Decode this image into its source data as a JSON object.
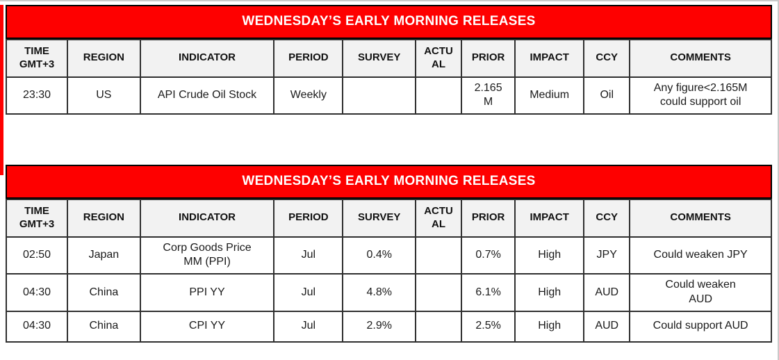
{
  "colors": {
    "band_red": "#fe0000",
    "band_text": "#ffffff",
    "header_bg": "#f2f2f2",
    "border": "#000000"
  },
  "tables": [
    {
      "title": "WEDNESDAY’S EARLY MORNING RELEASES",
      "headers": [
        "TIME\nGMT+3",
        "REGION",
        "INDICATOR",
        "PERIOD",
        "SURVEY",
        "ACTU\nAL",
        "PRIOR",
        "IMPACT",
        "CCY",
        "COMMENTS"
      ],
      "rows": [
        [
          "23:30",
          "US",
          "API Crude Oil Stock",
          "Weekly",
          "",
          "",
          "2.165\nM",
          "Medium",
          "Oil",
          "Any figure<2.165M\ncould support oil"
        ]
      ]
    },
    {
      "title": "WEDNESDAY’S EARLY MORNING RELEASES",
      "headers": [
        "TIME\nGMT+3",
        "REGION",
        "INDICATOR",
        "PERIOD",
        "SURVEY",
        "ACTU\nAL",
        "PRIOR",
        "IMPACT",
        "CCY",
        "COMMENTS"
      ],
      "rows": [
        [
          "02:50",
          "Japan",
          "Corp Goods Price\nMM (PPI)",
          "Jul",
          "0.4%",
          "",
          "0.7%",
          "High",
          "JPY",
          "Could weaken JPY"
        ],
        [
          "04:30",
          "China",
          "PPI YY",
          "Jul",
          "4.8%",
          "",
          "6.1%",
          "High",
          "AUD",
          "Could weaken\nAUD"
        ],
        [
          "04:30",
          "China",
          "CPI YY",
          "Jul",
          "2.9%",
          "",
          "2.5%",
          "High",
          "AUD",
          "Could support AUD"
        ]
      ]
    }
  ]
}
